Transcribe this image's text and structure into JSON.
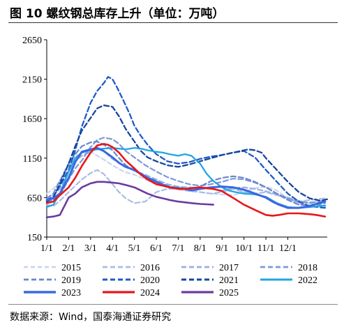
{
  "header": {
    "title": "图 10 螺纹钢总库存上升（单位：万吨）"
  },
  "footer": {
    "source": "数据来源：Wind，国泰海通证券研究"
  },
  "chart_data": {
    "type": "line",
    "ylim": [
      150,
      2650
    ],
    "yticks": [
      "150",
      "650",
      "1150",
      "1650",
      "2150",
      "2650"
    ],
    "ytick_values": [
      150,
      650,
      1150,
      1650,
      2150,
      2650
    ],
    "xlim": [
      0,
      12.8
    ],
    "xticks": [
      "1/1",
      "2/1",
      "3/1",
      "4/1",
      "5/1",
      "6/1",
      "7/1",
      "8/1",
      "9/1",
      "10/1",
      "11/1",
      "12/1"
    ],
    "xtick_values": [
      0,
      1,
      2,
      3,
      4,
      5,
      6,
      7,
      8,
      9,
      10,
      11
    ],
    "legend_position": "bottom",
    "series": [
      {
        "name": "2015",
        "color": "#C9D6EE",
        "dash": "6,4",
        "width": 2.2,
        "x": [
          0,
          0.3,
          0.6,
          1,
          1.3,
          1.6,
          2,
          2.5,
          3,
          3.5,
          4,
          4.5,
          5,
          5.5,
          6,
          6.5,
          7,
          7.5,
          8,
          8.5,
          9,
          9.5,
          10,
          10.5,
          11,
          11.5,
          12,
          12.7
        ],
        "y": [
          700,
          760,
          860,
          1050,
          1170,
          1220,
          1230,
          1150,
          1060,
          980,
          940,
          880,
          830,
          790,
          750,
          730,
          720,
          700,
          690,
          680,
          720,
          770,
          790,
          740,
          640,
          570,
          580,
          620
        ]
      },
      {
        "name": "2016",
        "color": "#A8BDE6",
        "dash": "7,4",
        "width": 2.2,
        "x": [
          0,
          0.3,
          0.6,
          1,
          1.3,
          1.6,
          2,
          2.3,
          2.6,
          3,
          3.3,
          3.6,
          4,
          4.5,
          5,
          5.5,
          6,
          6.5,
          7,
          7.5,
          8,
          8.5,
          9,
          9.5,
          10,
          10.5,
          11,
          11.5,
          12,
          12.7
        ],
        "y": [
          560,
          540,
          610,
          720,
          800,
          880,
          960,
          1000,
          950,
          820,
          720,
          640,
          580,
          600,
          720,
          760,
          760,
          740,
          720,
          700,
          720,
          760,
          720,
          700,
          720,
          680,
          640,
          600,
          620,
          640
        ]
      },
      {
        "name": "2017",
        "color": "#9AB0E0",
        "dash": "7,4",
        "width": 2.2,
        "x": [
          0,
          0.3,
          0.6,
          1,
          1.3,
          1.6,
          2,
          2.3,
          2.6,
          3,
          3.5,
          4,
          4.5,
          5,
          5.5,
          6,
          6.5,
          7,
          7.5,
          8,
          8.5,
          9,
          9.5,
          10,
          10.5,
          11,
          11.5,
          12,
          12.7
        ],
        "y": [
          610,
          680,
          760,
          980,
          1120,
          1180,
          1230,
          1270,
          1240,
          1140,
          1060,
          990,
          940,
          880,
          820,
          790,
          780,
          770,
          760,
          740,
          770,
          780,
          760,
          730,
          690,
          650,
          610,
          580,
          540
        ]
      },
      {
        "name": "2018",
        "color": "#7F98D6",
        "dash": "7,4",
        "width": 2.2,
        "x": [
          0,
          0.3,
          0.6,
          1,
          1.3,
          1.6,
          2,
          2.3,
          2.6,
          3,
          3.3,
          3.6,
          4,
          4.5,
          5,
          5.5,
          6,
          6.5,
          7,
          7.5,
          8,
          8.5,
          9,
          9.5,
          10,
          10.5,
          11,
          11.5,
          12,
          12.7
        ],
        "y": [
          590,
          620,
          680,
          880,
          1020,
          1120,
          1290,
          1380,
          1410,
          1390,
          1330,
          1240,
          1160,
          1060,
          980,
          910,
          860,
          820,
          800,
          820,
          850,
          890,
          880,
          840,
          780,
          700,
          640,
          590,
          590,
          600
        ]
      },
      {
        "name": "2019",
        "color": "#6A86CF",
        "dash": "7,4",
        "width": 2.2,
        "x": [
          0,
          0.3,
          0.6,
          1,
          1.3,
          1.6,
          2,
          2.3,
          2.6,
          3,
          3.3,
          3.6,
          4,
          4.5,
          5,
          5.5,
          6,
          6.5,
          7,
          7.5,
          8,
          8.5,
          9,
          9.5,
          10,
          10.5,
          11,
          11.5,
          12,
          12.7
        ],
        "y": [
          640,
          700,
          860,
          1080,
          1200,
          1300,
          1350,
          1360,
          1320,
          1250,
          1150,
          1060,
          990,
          920,
          860,
          800,
          770,
          750,
          790,
          860,
          900,
          920,
          900,
          850,
          780,
          700,
          620,
          560,
          550,
          580
        ]
      },
      {
        "name": "2020",
        "color": "#1F5BC8",
        "dash": "7,4",
        "width": 2.3,
        "x": [
          0,
          0.3,
          0.6,
          1,
          1.3,
          1.6,
          2,
          2.3,
          2.6,
          2.8,
          3,
          3.2,
          3.5,
          3.8,
          4,
          4.3,
          4.6,
          5,
          5.5,
          6,
          6.5,
          7,
          7.5,
          8,
          8.5,
          9,
          9.5,
          10,
          10.5,
          11,
          11.5,
          12,
          12.7
        ],
        "y": [
          620,
          660,
          800,
          1000,
          1250,
          1550,
          1850,
          2000,
          2100,
          2180,
          2150,
          2050,
          1880,
          1700,
          1560,
          1430,
          1320,
          1200,
          1110,
          1080,
          1100,
          1140,
          1170,
          1190,
          1220,
          1240,
          1160,
          1000,
          850,
          700,
          600,
          540,
          520
        ]
      },
      {
        "name": "2021",
        "color": "#17459E",
        "dash": "7,4",
        "width": 2.3,
        "x": [
          0,
          0.3,
          0.6,
          1,
          1.3,
          1.6,
          2,
          2.3,
          2.6,
          3,
          3.3,
          3.6,
          4,
          4.3,
          4.6,
          5,
          5.5,
          6,
          6.5,
          7,
          7.5,
          8,
          8.5,
          9,
          9.2,
          9.5,
          9.8,
          10,
          10.5,
          11,
          11.5,
          12,
          12.5,
          12.8
        ],
        "y": [
          600,
          650,
          820,
          1080,
          1300,
          1500,
          1660,
          1780,
          1820,
          1800,
          1680,
          1520,
          1360,
          1240,
          1160,
          1110,
          1060,
          1040,
          1070,
          1110,
          1150,
          1190,
          1220,
          1250,
          1260,
          1250,
          1220,
          1150,
          1000,
          850,
          720,
          640,
          610,
          630
        ]
      },
      {
        "name": "2022",
        "color": "#22A6E0",
        "dash": "",
        "width": 2.3,
        "x": [
          0,
          0.3,
          0.6,
          1,
          1.3,
          1.6,
          2,
          2.3,
          2.6,
          3,
          3.3,
          3.6,
          4,
          4.3,
          4.6,
          5,
          5.3,
          5.6,
          6,
          6.3,
          6.6,
          7,
          7.3,
          7.6,
          8,
          8.3,
          8.6,
          9,
          9.5,
          10,
          10.5,
          11,
          11.5,
          12,
          12.7
        ],
        "y": [
          530,
          560,
          700,
          980,
          1150,
          1220,
          1250,
          1260,
          1270,
          1280,
          1270,
          1260,
          1280,
          1270,
          1250,
          1230,
          1220,
          1200,
          1180,
          1200,
          1180,
          1080,
          950,
          860,
          780,
          740,
          720,
          700,
          690,
          660,
          580,
          530,
          520,
          530,
          550
        ]
      },
      {
        "name": "2023",
        "color": "#3A68E0",
        "dash": "",
        "width": 3.0,
        "x": [
          0,
          0.3,
          0.6,
          1,
          1.3,
          1.6,
          2,
          2.3,
          2.6,
          3,
          3.3,
          3.6,
          4,
          4.3,
          4.6,
          5,
          5.3,
          5.6,
          6,
          6.3,
          6.6,
          7,
          7.5,
          8,
          8.5,
          9,
          9.5,
          10,
          10.3,
          10.6,
          11,
          11.5,
          12,
          12.3,
          12.7
        ],
        "y": [
          620,
          640,
          700,
          900,
          1100,
          1230,
          1260,
          1280,
          1240,
          1160,
          1090,
          1040,
          1000,
          950,
          900,
          850,
          810,
          780,
          770,
          760,
          740,
          760,
          780,
          790,
          780,
          750,
          700,
          650,
          600,
          560,
          520,
          520,
          540,
          570,
          600
        ]
      },
      {
        "name": "2024",
        "color": "#E8161A",
        "dash": "",
        "width": 2.6,
        "x": [
          0,
          0.3,
          0.6,
          1,
          1.3,
          1.6,
          2,
          2.3,
          2.6,
          2.8,
          3,
          3.3,
          3.6,
          4,
          4.3,
          4.6,
          5,
          5.3,
          5.6,
          6,
          6.3,
          6.6,
          7,
          7.3,
          7.6,
          8,
          8.3,
          8.6,
          9,
          9.3,
          9.6,
          10,
          10.3,
          10.6,
          11,
          11.5,
          12,
          12.3,
          12.7
        ],
        "y": [
          580,
          600,
          680,
          780,
          900,
          1050,
          1220,
          1310,
          1330,
          1320,
          1290,
          1220,
          1120,
          1020,
          940,
          880,
          820,
          800,
          780,
          760,
          760,
          770,
          780,
          770,
          760,
          730,
          680,
          630,
          560,
          520,
          480,
          430,
          420,
          430,
          450,
          450,
          440,
          430,
          410
        ]
      },
      {
        "name": "2025",
        "color": "#6B3BA0",
        "dash": "",
        "width": 2.6,
        "x": [
          0,
          0.3,
          0.6,
          1,
          1.3,
          1.6,
          2,
          2.3,
          2.6,
          3,
          3.3,
          3.6,
          4,
          4.3,
          4.6,
          5,
          5.3,
          5.6,
          6,
          6.3,
          6.6,
          7,
          7.3,
          7.6
        ],
        "y": [
          400,
          410,
          430,
          650,
          700,
          780,
          830,
          850,
          850,
          840,
          830,
          810,
          780,
          740,
          700,
          660,
          640,
          620,
          600,
          590,
          580,
          570,
          565,
          560
        ]
      }
    ]
  }
}
